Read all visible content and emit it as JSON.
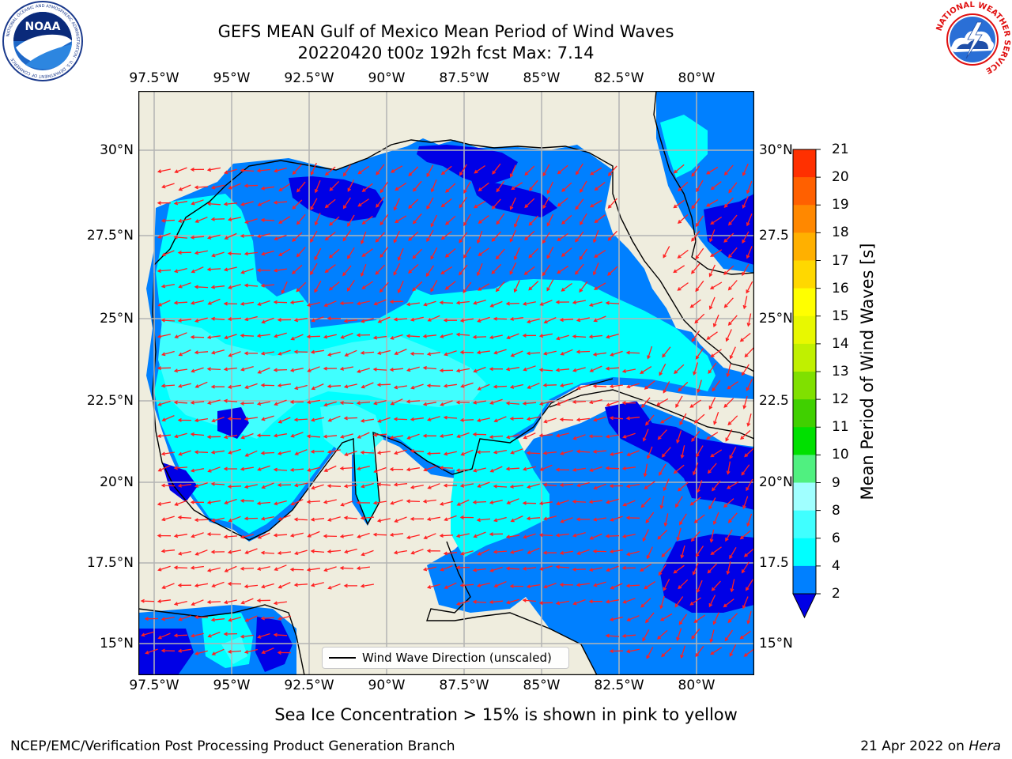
{
  "header": {
    "title_line1": "GEFS MEAN Gulf of Mexico Mean Period of Wind Waves",
    "title_line2": "20220420 t00z 192h fcst   Max: 7.14"
  },
  "logos": {
    "left": {
      "name": "NOAA",
      "ring_text": "NATIONAL OCEANIC AND ATMOSPHERIC ADMINISTRATION · U.S. DEPARTMENT OF COMMERCE",
      "center_text": "NOAA"
    },
    "right": {
      "name": "National Weather Service",
      "ring_text": "NATIONAL WEATHER SERVICE"
    }
  },
  "map": {
    "lon_ticks": [
      "97.5°W",
      "95°W",
      "92.5°W",
      "90°W",
      "87.5°W",
      "85°W",
      "82.5°W",
      "80°W"
    ],
    "lat_ticks_left": [
      "30°N",
      "27.5°N",
      "25°N",
      "22.5°N",
      "20°N",
      "17.5°N",
      "15°N"
    ],
    "lat_ticks_right": [
      "30°N",
      "27.5",
      "25°N",
      "22.5",
      "20°N",
      "17.5",
      "15°N"
    ],
    "legend_label": "Wind Wave Direction (unscaled)",
    "colors": {
      "land": "#efedde",
      "grid": "#b4b4b4",
      "arrow": "#ff0000"
    }
  },
  "colorbar": {
    "label": "Mean Period of Wind Waves [s]",
    "ticks": [
      "2",
      "4",
      "6",
      "8",
      "9",
      "10",
      "11",
      "12",
      "13",
      "14",
      "15",
      "16",
      "17",
      "18",
      "19",
      "20",
      "21"
    ],
    "under_color": "#0000e6",
    "colors": [
      "#0080ff",
      "#00ffff",
      "#40ffff",
      "#a0ffff",
      "#50f080",
      "#00e000",
      "#40d000",
      "#80e000",
      "#c0f000",
      "#e8f800",
      "#ffff00",
      "#ffd800",
      "#ffb000",
      "#ff8800",
      "#ff6000",
      "#ff3000"
    ]
  },
  "footnote": "Sea Ice Concentration > 15% is shown in pink to yellow",
  "footer": {
    "left": "NCEP/EMC/Verification Post Processing Product Generation Branch",
    "right_prefix": "21 Apr 2022 on ",
    "right_host": "Hera"
  }
}
